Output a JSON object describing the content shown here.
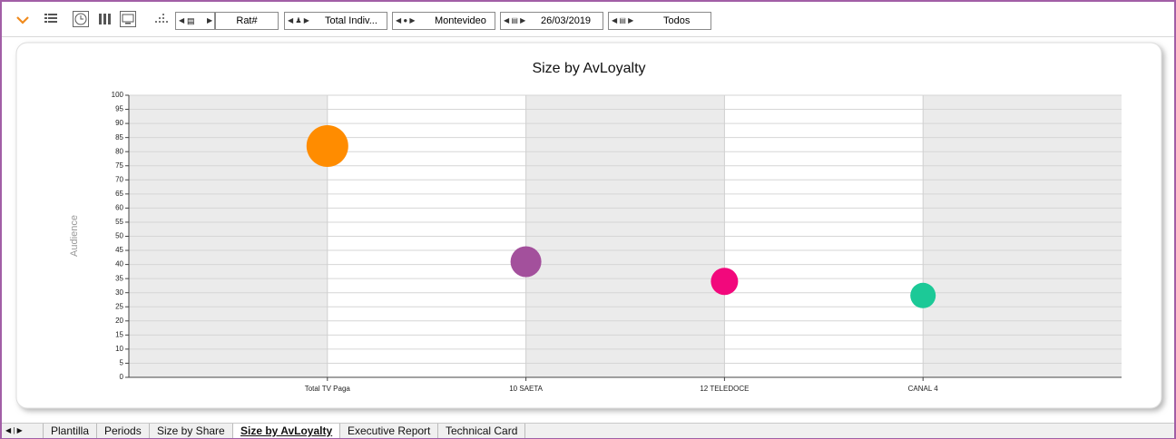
{
  "toolbar": {
    "selectors": [
      "Rat#",
      "Total Indiv...",
      "Montevideo",
      "26/03/2019",
      "Todos"
    ]
  },
  "chart_data": {
    "type": "bubble",
    "title": "Size by AvLoyalty",
    "y_label": "Audience",
    "categories": [
      "Total TV Paga",
      "10 SAETA",
      "12 TELEDOCE",
      "CANAL 4"
    ],
    "series": [
      {
        "values": [
          82,
          41,
          34,
          29
        ],
        "sizes": [
          23,
          17,
          15,
          14
        ],
        "colors": [
          "#ff8c00",
          "#a3509c",
          "#f2087c",
          "#1cc997"
        ]
      }
    ],
    "ylim": [
      0,
      100
    ],
    "yticks": [
      0,
      5,
      10,
      15,
      20,
      25,
      30,
      35,
      40,
      45,
      50,
      55,
      60,
      65,
      70,
      75,
      80,
      85,
      90,
      95,
      100
    ],
    "grid": true
  },
  "tabs": {
    "items": [
      "Plantilla",
      "Periods",
      "Size by Share",
      "Size by AvLoyalty",
      "Executive Report",
      "Technical Card"
    ],
    "active": 3
  }
}
